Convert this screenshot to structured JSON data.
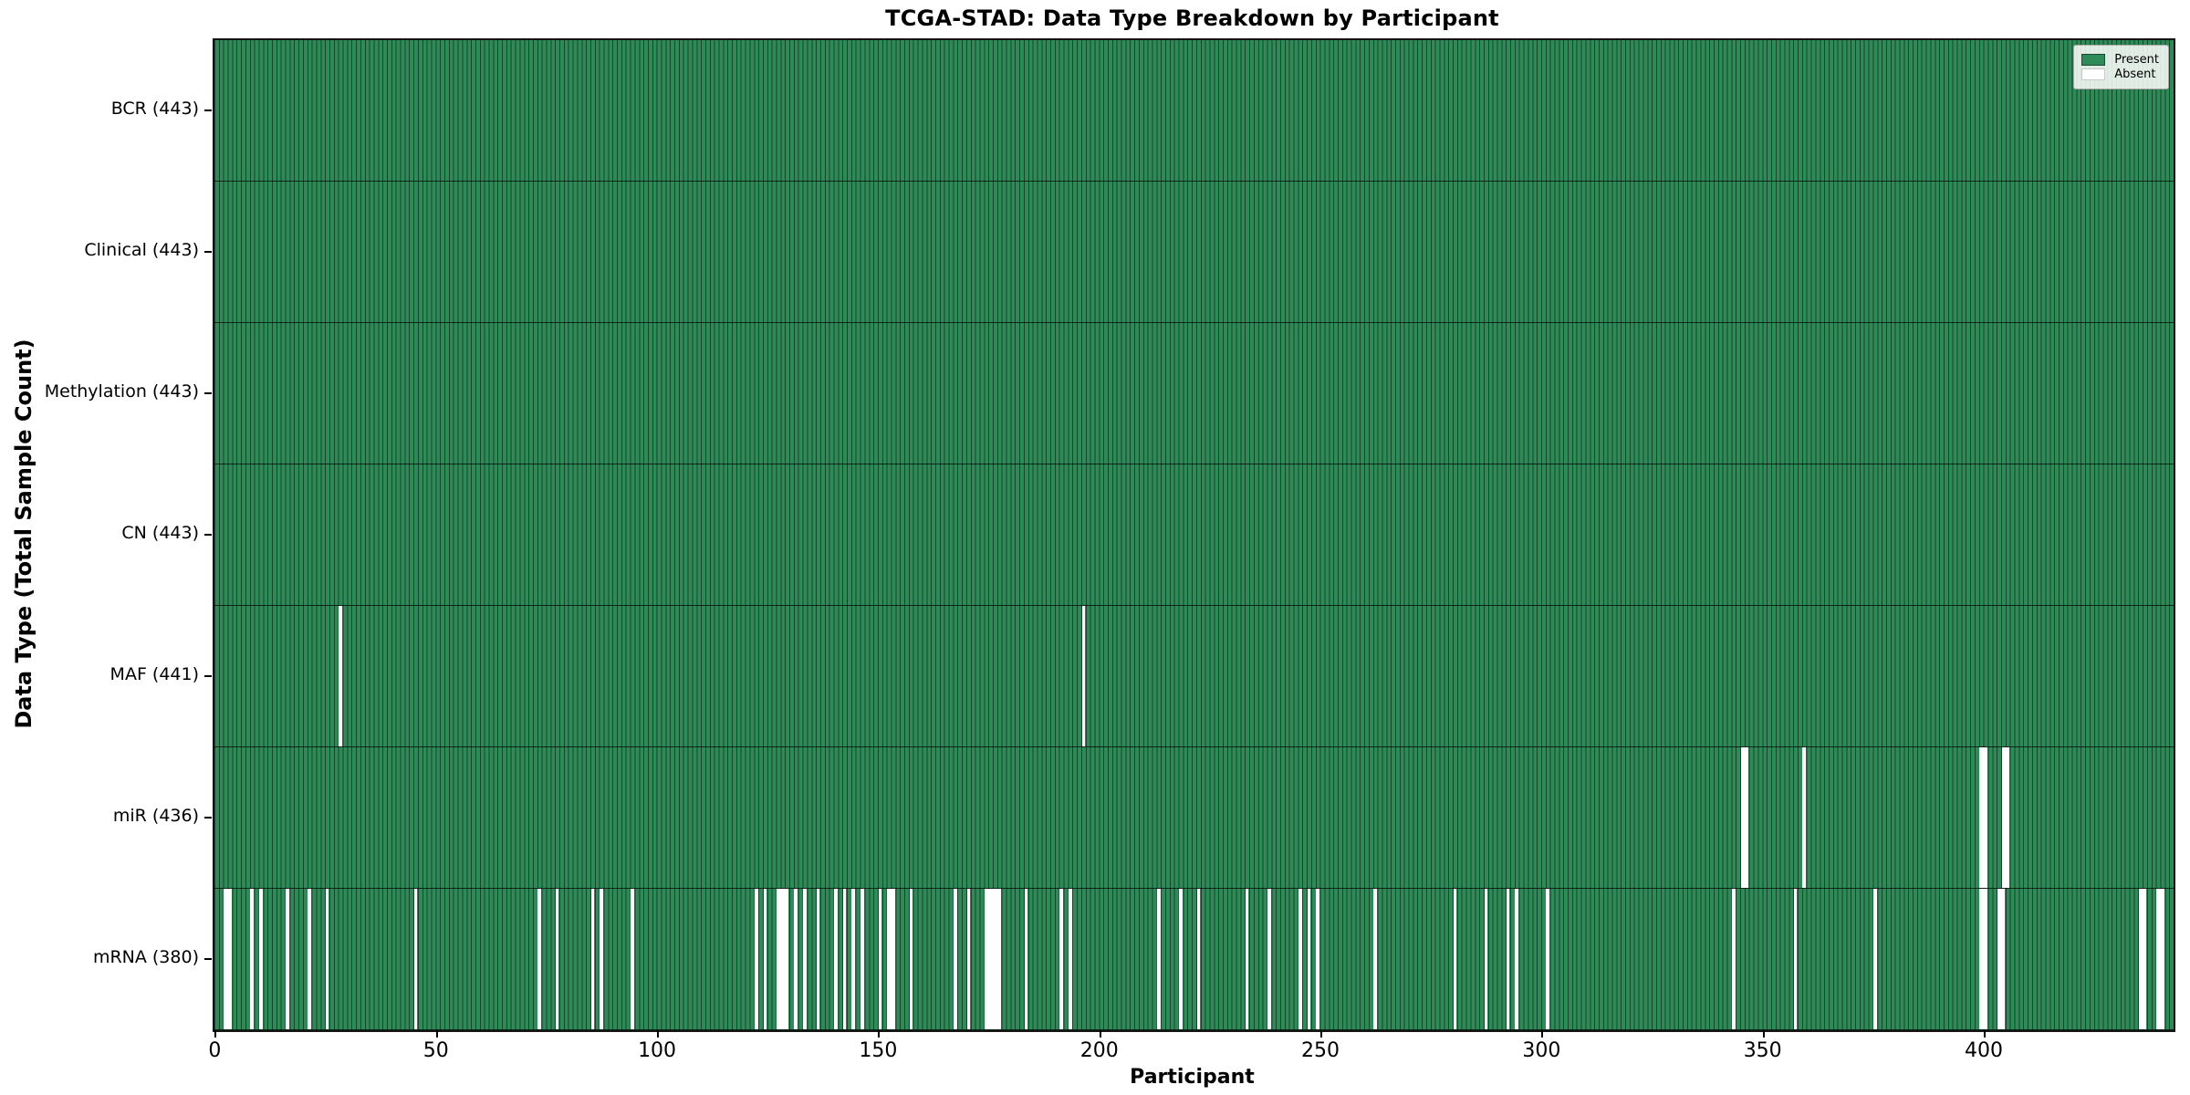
{
  "chart_data": {
    "type": "heatmap",
    "title": "TCGA-STAD: Data Type Breakdown by Participant",
    "xlabel": "Participant",
    "ylabel": "Data Type (Total Sample Count)",
    "n_participants": 443,
    "x_ticks": [
      0,
      50,
      100,
      150,
      200,
      250,
      300,
      350,
      400
    ],
    "grid": false,
    "legend_position": "upper right",
    "colors": {
      "present": "#2e8b57",
      "absent": "#ffffff",
      "bar_edge": "#1c4c33",
      "row_separator": "#1a1a1a",
      "spine": "#141414"
    },
    "legend": [
      {
        "label": "Present",
        "color": "#2e8b57"
      },
      {
        "label": "Absent",
        "color": "#ffffff"
      }
    ],
    "rows": [
      {
        "name": "BCR",
        "label": "BCR (443)",
        "count": 443,
        "absent": []
      },
      {
        "name": "Clinical",
        "label": "Clinical (443)",
        "count": 443,
        "absent": []
      },
      {
        "name": "Methylation",
        "label": "Methylation (443)",
        "count": 443,
        "absent": []
      },
      {
        "name": "CN",
        "label": "CN (443)",
        "count": 443,
        "absent": []
      },
      {
        "name": "MAF",
        "label": "MAF (441)",
        "count": 441,
        "absent": [
          28,
          196
        ]
      },
      {
        "name": "miR",
        "label": "miR (436)",
        "count": 436,
        "absent": [
          345,
          346,
          359,
          399,
          400,
          404,
          405
        ]
      },
      {
        "name": "mRNA",
        "label": "mRNA (380)",
        "count": 380,
        "absent": [
          2,
          3,
          8,
          10,
          16,
          21,
          25,
          45,
          73,
          77,
          85,
          87,
          94,
          122,
          124,
          127,
          128,
          129,
          131,
          133,
          136,
          140,
          142,
          144,
          146,
          150,
          152,
          153,
          157,
          167,
          170,
          174,
          175,
          176,
          177,
          183,
          191,
          193,
          213,
          218,
          222,
          233,
          238,
          245,
          247,
          249,
          262,
          280,
          287,
          292,
          294,
          301,
          343,
          357,
          375,
          399,
          400,
          403,
          404,
          435,
          436,
          439,
          440
        ]
      }
    ]
  }
}
